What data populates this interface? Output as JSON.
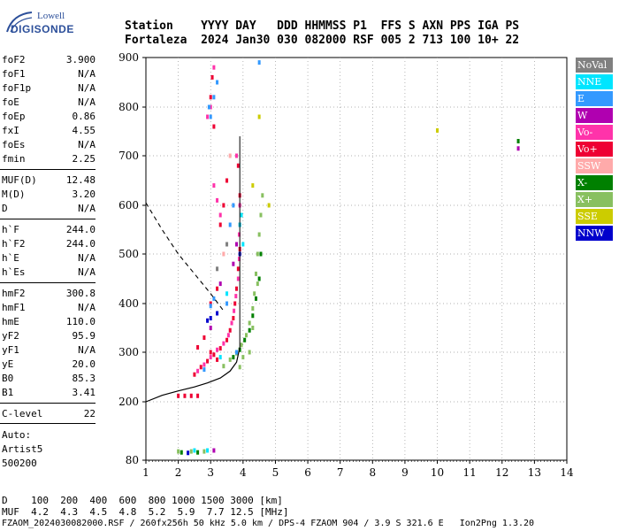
{
  "logo": {
    "top": "Lowell",
    "bottom": "DIGISONDE"
  },
  "header": {
    "row1": "Station    YYYY DAY   DDD HHMMSS P1  FFS S AXN PPS IGA PS",
    "row2": "Fortaleza  2024 Jan30 030 082000 RSF 005 2 713 100 10+ 22"
  },
  "params": [
    {
      "name": "foF2",
      "value": "3.900"
    },
    {
      "name": "foF1",
      "value": "N/A"
    },
    {
      "name": "foF1p",
      "value": "N/A"
    },
    {
      "name": "foE",
      "value": "N/A"
    },
    {
      "name": "foEp",
      "value": "0.86"
    },
    {
      "name": "fxI",
      "value": "4.55"
    },
    {
      "name": "foEs",
      "value": "N/A"
    },
    {
      "name": "fmin",
      "value": "2.25"
    },
    {
      "name": "MUF(D)",
      "value": "12.48"
    },
    {
      "name": "M(D)",
      "value": "3.20"
    },
    {
      "name": "D",
      "value": "N/A"
    },
    {
      "name": "h`F",
      "value": "244.0"
    },
    {
      "name": "h`F2",
      "value": "244.0"
    },
    {
      "name": "h`E",
      "value": "N/A"
    },
    {
      "name": "h`Es",
      "value": "N/A"
    },
    {
      "name": "hmF2",
      "value": "300.8"
    },
    {
      "name": "hmF1",
      "value": "N/A"
    },
    {
      "name": "hmE",
      "value": "110.0"
    },
    {
      "name": "yF2",
      "value": "95.9"
    },
    {
      "name": "yF1",
      "value": "N/A"
    },
    {
      "name": "yE",
      "value": "20.0"
    },
    {
      "name": "B0",
      "value": "85.3"
    },
    {
      "name": "B1",
      "value": "3.41"
    },
    {
      "name": "C-level",
      "value": "22"
    }
  ],
  "auto": {
    "label": "Auto:",
    "software": "Artist5",
    "version": "500200"
  },
  "legend": [
    {
      "label": "NoVal",
      "color": "#808080"
    },
    {
      "label": "NNE",
      "color": "#00e5ff"
    },
    {
      "label": "E",
      "color": "#3399ff"
    },
    {
      "label": "W",
      "color": "#b000b0"
    },
    {
      "label": "Vo-",
      "color": "#ff33aa"
    },
    {
      "label": "Vo+",
      "color": "#ee0033"
    },
    {
      "label": "SSW",
      "color": "#ffaaaa"
    },
    {
      "label": "X-",
      "color": "#008000"
    },
    {
      "label": "X+",
      "color": "#88c060"
    },
    {
      "label": "SSE",
      "color": "#cccc00"
    },
    {
      "label": "NNW",
      "color": "#0000cc"
    }
  ],
  "bottom": {
    "d_row": "D    100  200  400  600  800 1000 1500 3000 [km]",
    "muf_row": "MUF  4.2  4.3  4.5  4.8  5.2  5.9  7.7 12.5 [MHz]",
    "footer": "FZAOM_2024030082000.RSF / 260fx256h 50 kHz 5.0 km / DPS-4 FZAOM 904 / 3.9 S 321.6 E   Ion2Png 1.3.20"
  },
  "chart_data": {
    "type": "scatter",
    "x_ticks": [
      1,
      2,
      3,
      4,
      5,
      6,
      7,
      8,
      9,
      10,
      11,
      12,
      13,
      14
    ],
    "y_ticks": [
      80,
      200,
      300,
      400,
      500,
      600,
      700,
      800,
      900
    ],
    "xlim": [
      1,
      14
    ],
    "ylim": [
      80,
      900
    ],
    "grid": true,
    "legend_position": "right",
    "profile_curve": [
      [
        3.9,
        310
      ],
      [
        3.8,
        280
      ],
      [
        3.6,
        262
      ],
      [
        3.3,
        248
      ],
      [
        2.9,
        238
      ],
      [
        2.5,
        230
      ],
      [
        2.0,
        222
      ],
      [
        1.5,
        213
      ],
      [
        1.0,
        200
      ]
    ],
    "dashed_curve": [
      [
        1.0,
        605
      ],
      [
        1.5,
        550
      ],
      [
        2.0,
        500
      ],
      [
        2.5,
        460
      ],
      [
        3.0,
        420
      ],
      [
        3.4,
        385
      ]
    ],
    "series": [
      {
        "color_key": "Vo+",
        "points": [
          [
            2.5,
            255
          ],
          [
            2.7,
            270
          ],
          [
            2.9,
            282
          ],
          [
            3.1,
            295
          ],
          [
            3.3,
            308
          ],
          [
            3.5,
            325
          ],
          [
            3.6,
            345
          ],
          [
            3.7,
            370
          ],
          [
            3.75,
            400
          ],
          [
            3.8,
            430
          ],
          [
            3.85,
            470
          ],
          [
            3.9,
            510
          ],
          [
            3.9,
            560
          ],
          [
            3.9,
            620
          ],
          [
            3.85,
            680
          ],
          [
            2.0,
            212
          ],
          [
            2.2,
            212
          ],
          [
            2.4,
            212
          ],
          [
            2.6,
            212
          ],
          [
            3.0,
            400
          ],
          [
            3.2,
            430
          ],
          [
            3.3,
            560
          ],
          [
            3.4,
            600
          ],
          [
            3.5,
            650
          ],
          [
            3.1,
            760
          ],
          [
            3.0,
            820
          ],
          [
            3.05,
            860
          ],
          [
            3.0,
            300
          ],
          [
            3.2,
            285
          ],
          [
            2.6,
            310
          ],
          [
            2.8,
            330
          ]
        ]
      },
      {
        "color_key": "Vo-",
        "points": [
          [
            2.6,
            262
          ],
          [
            2.8,
            275
          ],
          [
            3.0,
            290
          ],
          [
            3.2,
            305
          ],
          [
            3.4,
            318
          ],
          [
            3.55,
            335
          ],
          [
            3.65,
            360
          ],
          [
            3.72,
            385
          ],
          [
            3.78,
            415
          ],
          [
            3.85,
            450
          ],
          [
            3.88,
            490
          ],
          [
            3.88,
            540
          ],
          [
            3.9,
            600
          ],
          [
            3.8,
            700
          ],
          [
            3.3,
            580
          ],
          [
            3.2,
            610
          ],
          [
            3.1,
            640
          ],
          [
            3.0,
            800
          ],
          [
            2.9,
            780
          ],
          [
            3.1,
            880
          ]
        ]
      },
      {
        "color_key": "X+",
        "points": [
          [
            3.4,
            272
          ],
          [
            3.6,
            285
          ],
          [
            3.8,
            298
          ],
          [
            3.95,
            315
          ],
          [
            4.1,
            335
          ],
          [
            4.2,
            360
          ],
          [
            4.3,
            390
          ],
          [
            4.35,
            420
          ],
          [
            4.4,
            460
          ],
          [
            4.45,
            500
          ],
          [
            4.5,
            540
          ],
          [
            4.55,
            580
          ],
          [
            4.6,
            620
          ],
          [
            4.2,
            300
          ],
          [
            4.0,
            290
          ],
          [
            3.9,
            270
          ],
          [
            4.3,
            350
          ],
          [
            4.45,
            440
          ],
          [
            2.0,
            98
          ],
          [
            2.4,
            98
          ],
          [
            2.8,
            98
          ]
        ]
      },
      {
        "color_key": "X-",
        "points": [
          [
            3.7,
            290
          ],
          [
            3.9,
            305
          ],
          [
            4.05,
            325
          ],
          [
            4.2,
            345
          ],
          [
            4.3,
            375
          ],
          [
            4.4,
            410
          ],
          [
            4.5,
            450
          ],
          [
            4.55,
            500
          ],
          [
            2.1,
            96
          ],
          [
            2.6,
            96
          ]
        ]
      },
      {
        "color_key": "E",
        "points": [
          [
            3.0,
            780
          ],
          [
            2.95,
            800
          ],
          [
            3.1,
            820
          ],
          [
            3.2,
            850
          ],
          [
            3.0,
            395
          ],
          [
            3.1,
            410
          ],
          [
            2.8,
            265
          ],
          [
            3.5,
            400
          ],
          [
            3.8,
            300
          ],
          [
            3.6,
            560
          ],
          [
            3.7,
            600
          ],
          [
            4.5,
            890
          ]
        ]
      },
      {
        "color_key": "NNE",
        "points": [
          [
            3.9,
            560
          ],
          [
            3.95,
            580
          ],
          [
            3.5,
            420
          ],
          [
            3.3,
            290
          ],
          [
            4.0,
            520
          ],
          [
            2.5,
            100
          ],
          [
            2.9,
            100
          ]
        ]
      },
      {
        "color_key": "W",
        "points": [
          [
            3.0,
            350
          ],
          [
            3.3,
            440
          ],
          [
            3.7,
            480
          ],
          [
            3.8,
            520
          ],
          [
            3.1,
            100
          ],
          [
            12.5,
            715
          ]
        ]
      },
      {
        "color_key": "NNW",
        "points": [
          [
            3.0,
            370
          ],
          [
            2.9,
            365
          ],
          [
            3.2,
            380
          ],
          [
            3.9,
            500
          ],
          [
            2.3,
            95
          ]
        ]
      },
      {
        "color_key": "X-",
        "points": [
          [
            12.5,
            730
          ]
        ]
      },
      {
        "color_key": "SSE",
        "points": [
          [
            4.5,
            780
          ],
          [
            4.8,
            600
          ],
          [
            10.0,
            752
          ],
          [
            4.3,
            640
          ]
        ]
      },
      {
        "color_key": "SSW",
        "points": [
          [
            3.4,
            500
          ],
          [
            3.6,
            700
          ]
        ]
      },
      {
        "color_key": "NoVal",
        "points": [
          [
            3.2,
            470
          ],
          [
            3.5,
            520
          ]
        ]
      }
    ]
  }
}
